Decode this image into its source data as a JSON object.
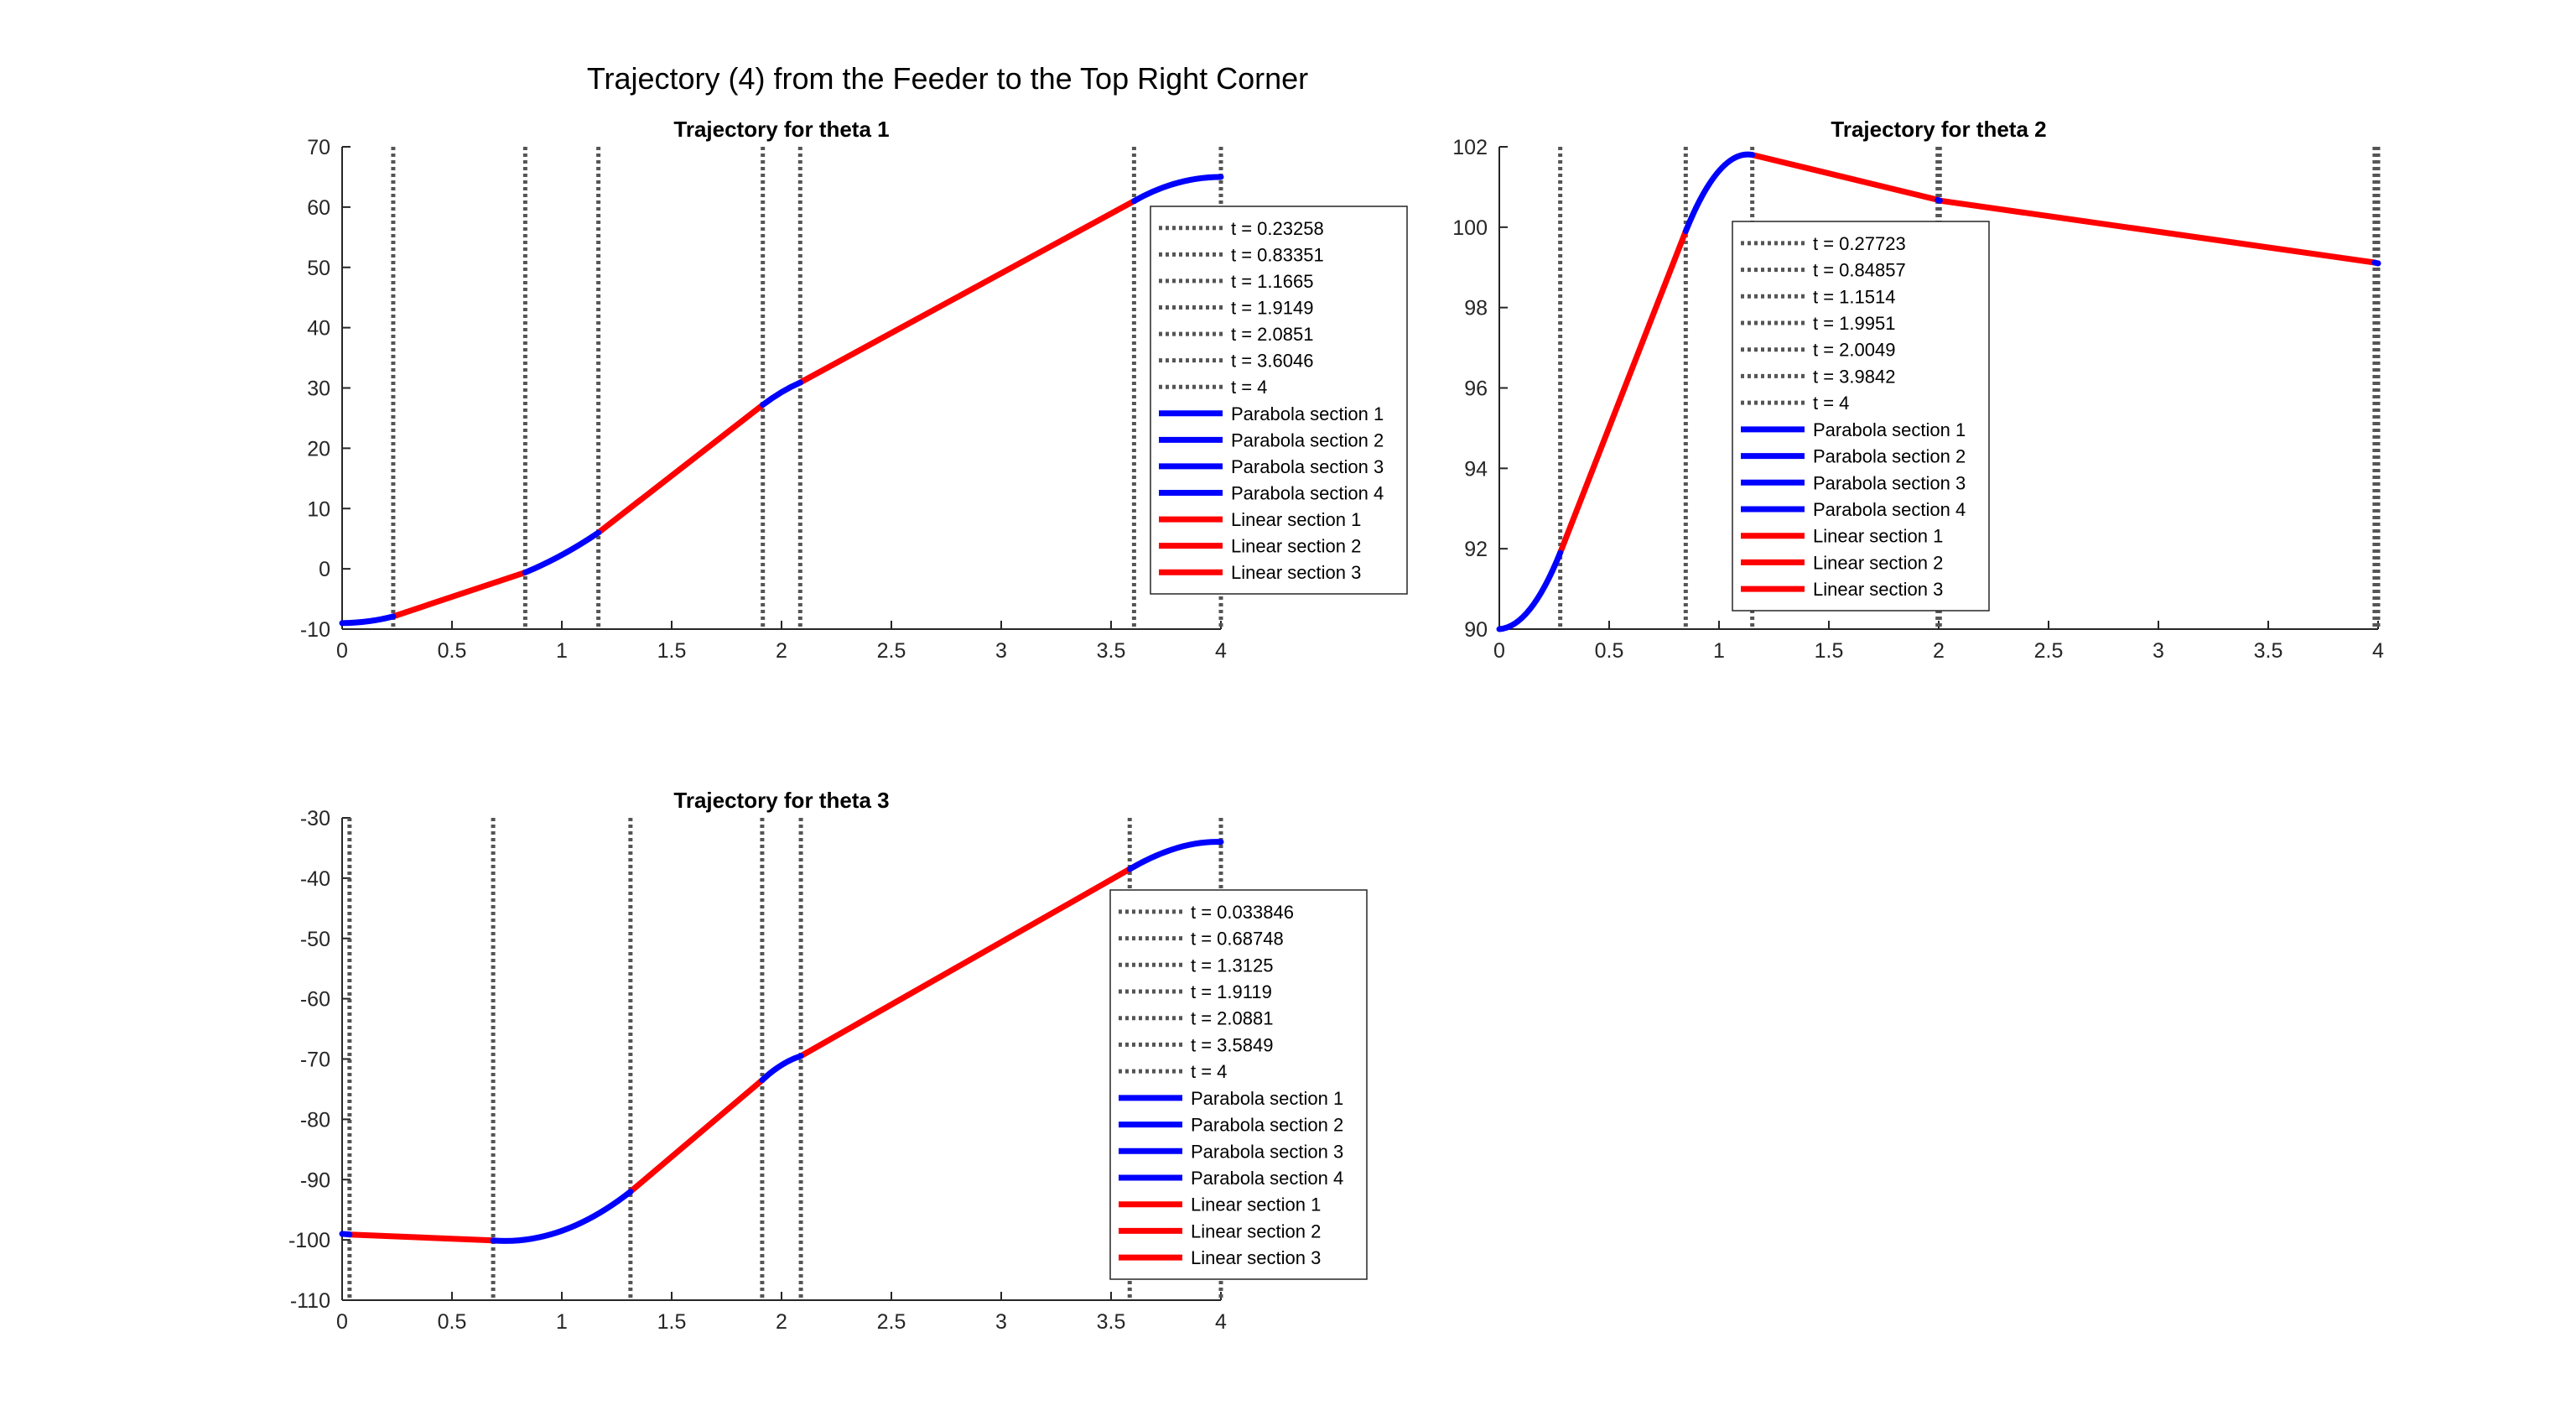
{
  "figure": {
    "suptitle": "Trajectory (4) from the Feeder to the Top Right Corner",
    "colors": {
      "parabola": "#0000FF",
      "linear": "#FF0000",
      "breakpoint": "#555555",
      "axis": "#262626"
    }
  },
  "chart_data": [
    {
      "type": "line",
      "title": "Trajectory for theta 1",
      "xlabel": "",
      "ylabel": "",
      "xlim": [
        0,
        4
      ],
      "ylim": [
        -10,
        70
      ],
      "xticks": [
        0,
        0.5,
        1,
        1.5,
        2,
        2.5,
        3,
        3.5,
        4
      ],
      "xtick_labels": [
        "0",
        "0.5",
        "1",
        "1.5",
        "2",
        "2.5",
        "3",
        "3.5",
        "4"
      ],
      "yticks": [
        -10,
        0,
        10,
        20,
        30,
        40,
        50,
        60,
        70
      ],
      "ytick_labels": [
        "-10",
        "0",
        "10",
        "20",
        "30",
        "40",
        "50",
        "60",
        "70"
      ],
      "legend_position": "right",
      "breakpoints": [
        0.23258,
        0.83351,
        1.1665,
        1.9149,
        2.0851,
        3.6046,
        4
      ],
      "breakpoint_labels": [
        "t = 0.23258",
        "t = 0.83351",
        "t = 1.1665",
        "t = 1.9149",
        "t = 2.0851",
        "t = 3.6046",
        "t = 4"
      ],
      "parabola_sections": [
        {
          "name": "Parabola section 1",
          "points": [
            [
              0,
              -9
            ],
            [
              0.12,
              -8.7
            ],
            [
              0.23258,
              -7.9
            ]
          ]
        },
        {
          "name": "Parabola section 2",
          "points": [
            [
              0.83351,
              -0.6
            ],
            [
              1.0,
              2.3
            ],
            [
              1.1665,
              6.0
            ]
          ]
        },
        {
          "name": "Parabola section 3",
          "points": [
            [
              1.9149,
              27.2
            ],
            [
              2.0,
              29.3
            ],
            [
              2.0851,
              30.9
            ]
          ]
        },
        {
          "name": "Parabola section 4",
          "points": [
            [
              3.6046,
              61.0
            ],
            [
              3.8,
              64.0
            ],
            [
              4.0,
              65.0
            ]
          ]
        }
      ],
      "linear_sections": [
        {
          "name": "Linear section 1",
          "points": [
            [
              0.23258,
              -7.9
            ],
            [
              0.83351,
              -0.6
            ]
          ]
        },
        {
          "name": "Linear section 2",
          "points": [
            [
              1.1665,
              6.0
            ],
            [
              1.9149,
              27.2
            ]
          ]
        },
        {
          "name": "Linear section 3",
          "points": [
            [
              2.0851,
              30.9
            ],
            [
              3.6046,
              61.0
            ]
          ]
        }
      ]
    },
    {
      "type": "line",
      "title": "Trajectory for theta 2",
      "xlabel": "",
      "ylabel": "",
      "xlim": [
        0,
        4
      ],
      "ylim": [
        90,
        102
      ],
      "xticks": [
        0,
        0.5,
        1,
        1.5,
        2,
        2.5,
        3,
        3.5,
        4
      ],
      "xtick_labels": [
        "0",
        "0.5",
        "1",
        "1.5",
        "2",
        "2.5",
        "3",
        "3.5",
        "4"
      ],
      "yticks": [
        90,
        92,
        94,
        96,
        98,
        100,
        102
      ],
      "ytick_labels": [
        "90",
        "92",
        "94",
        "96",
        "98",
        "100",
        "102"
      ],
      "legend_position": "left",
      "breakpoints": [
        0.27723,
        0.84857,
        1.1514,
        1.9951,
        2.0049,
        3.9842,
        4
      ],
      "breakpoint_labels": [
        "t = 0.27723",
        "t = 0.84857",
        "t = 1.1514",
        "t = 1.9951",
        "t = 2.0049",
        "t = 3.9842",
        "t = 4"
      ],
      "parabola_sections": [
        {
          "name": "Parabola section 1",
          "points": [
            [
              0,
              90.0
            ],
            [
              0.14,
              90.5
            ],
            [
              0.27723,
              91.9
            ]
          ]
        },
        {
          "name": "Parabola section 2",
          "points": [
            [
              0.84857,
              99.9
            ],
            [
              1.0,
              101.4
            ],
            [
              1.1514,
              101.8
            ]
          ]
        },
        {
          "name": "Parabola section 3",
          "points": [
            [
              1.9951,
              100.68
            ],
            [
              2.0,
              100.67
            ],
            [
              2.0049,
              100.66
            ]
          ]
        },
        {
          "name": "Parabola section 4",
          "points": [
            [
              3.9842,
              99.12
            ],
            [
              3.992,
              99.11
            ],
            [
              4.0,
              99.1
            ]
          ]
        }
      ],
      "linear_sections": [
        {
          "name": "Linear section 1",
          "points": [
            [
              0.27723,
              91.9
            ],
            [
              0.84857,
              99.9
            ]
          ]
        },
        {
          "name": "Linear section 2",
          "points": [
            [
              1.1514,
              101.8
            ],
            [
              1.9951,
              100.68
            ]
          ]
        },
        {
          "name": "Linear section 3",
          "points": [
            [
              2.0049,
              100.66
            ],
            [
              3.9842,
              99.12
            ]
          ]
        }
      ]
    },
    {
      "type": "line",
      "title": "Trajectory for theta 3",
      "xlabel": "",
      "ylabel": "",
      "xlim": [
        0,
        4
      ],
      "ylim": [
        -110,
        -30
      ],
      "xticks": [
        0,
        0.5,
        1,
        1.5,
        2,
        2.5,
        3,
        3.5,
        4
      ],
      "xtick_labels": [
        "0",
        "0.5",
        "1",
        "1.5",
        "2",
        "2.5",
        "3",
        "3.5",
        "4"
      ],
      "yticks": [
        -110,
        -100,
        -90,
        -80,
        -70,
        -60,
        -50,
        -40,
        -30
      ],
      "ytick_labels": [
        "-110",
        "-100",
        "-90",
        "-80",
        "-70",
        "-60",
        "-50",
        "-40",
        "-30"
      ],
      "legend_position": "right",
      "breakpoints": [
        0.033846,
        0.68748,
        1.3125,
        1.9119,
        2.0881,
        3.5849,
        4
      ],
      "breakpoint_labels": [
        "t = 0.033846",
        "t = 0.68748",
        "t = 1.3125",
        "t = 1.9119",
        "t = 2.0881",
        "t = 3.5849",
        "t = 4"
      ],
      "parabola_sections": [
        {
          "name": "Parabola section 1",
          "points": [
            [
              0,
              -99.0
            ],
            [
              0.017,
              -99.05
            ],
            [
              0.033846,
              -99.1
            ]
          ]
        },
        {
          "name": "Parabola section 2",
          "points": [
            [
              0.68748,
              -100.1
            ],
            [
              1.0,
              -98.5
            ],
            [
              1.3125,
              -92.0
            ]
          ]
        },
        {
          "name": "Parabola section 3",
          "points": [
            [
              1.9119,
              -73.5
            ],
            [
              2.0,
              -71.0
            ],
            [
              2.0881,
              -69.5
            ]
          ]
        },
        {
          "name": "Parabola section 4",
          "points": [
            [
              3.5849,
              -38.5
            ],
            [
              3.8,
              -35.0
            ],
            [
              4.0,
              -34.0
            ]
          ]
        }
      ],
      "linear_sections": [
        {
          "name": "Linear section 1",
          "points": [
            [
              0.033846,
              -99.1
            ],
            [
              0.68748,
              -100.1
            ]
          ]
        },
        {
          "name": "Linear section 2",
          "points": [
            [
              1.3125,
              -92.0
            ],
            [
              1.9119,
              -73.5
            ]
          ]
        },
        {
          "name": "Linear section 3",
          "points": [
            [
              2.0881,
              -69.5
            ],
            [
              3.5849,
              -38.5
            ]
          ]
        }
      ]
    }
  ]
}
